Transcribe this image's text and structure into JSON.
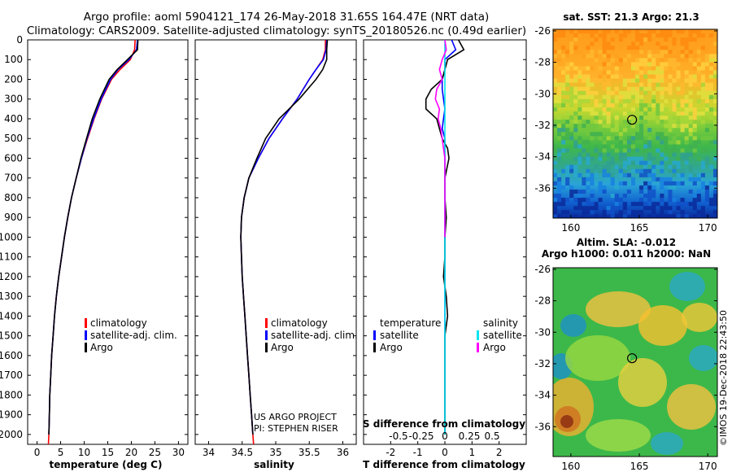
{
  "header": {
    "title_line1": "Argo profile: aoml 5904121_174 26-May-2018 31.65S 164.47E (NRT data)",
    "title_line2": "Climatology: CARS2009. Satellite-adjusted climatology: synTS_20180526.nc (0.49d earlier)"
  },
  "colors": {
    "climatology": "#ff0000",
    "satellite": "#0000ff",
    "argo": "#000000",
    "sat_salinity": "#00e5ee",
    "s_argo": "#ff00ff"
  },
  "chart_data": [
    {
      "type": "line",
      "name": "temperature",
      "xlabel": "temperature (deg C)",
      "xlim": [
        -2,
        32
      ],
      "xticks": [
        "0",
        "5",
        "10",
        "15",
        "20",
        "25",
        "30"
      ],
      "ylim": [
        2050,
        0
      ],
      "yticks": [
        "0",
        "100",
        "200",
        "300",
        "400",
        "500",
        "600",
        "700",
        "800",
        "900",
        "1000",
        "1100",
        "1200",
        "1300",
        "1400",
        "1500",
        "1600",
        "1700",
        "1800",
        "1900",
        "2000"
      ],
      "depth": [
        0,
        50,
        100,
        150,
        200,
        300,
        400,
        500,
        600,
        700,
        800,
        900,
        1000,
        1100,
        1200,
        1300,
        1400,
        1500,
        1600,
        1700,
        1800,
        1900,
        2000,
        2050
      ],
      "series": [
        {
          "name": "climatology",
          "color": "#ff0000",
          "values": [
            20.8,
            20.7,
            19.8,
            17.6,
            15.8,
            13.7,
            12.1,
            10.7,
            9.4,
            8.3,
            7.3,
            6.5,
            5.8,
            5.2,
            4.6,
            4.1,
            3.7,
            3.4,
            3.1,
            2.9,
            2.7,
            2.6,
            2.5,
            2.4
          ]
        },
        {
          "name": "satellite-adj. clim.",
          "color": "#0000ff",
          "values": [
            21.3,
            21.1,
            19.5,
            17.2,
            15.6,
            13.6,
            12.0,
            10.6,
            9.4,
            8.3,
            7.3,
            6.5,
            5.8,
            5.2,
            4.6,
            4.1,
            3.7,
            3.4,
            3.1,
            2.9,
            2.7,
            2.6,
            2.5,
            null
          ]
        },
        {
          "name": "Argo",
          "color": "#000000",
          "values": [
            21.4,
            21.3,
            19.2,
            17.0,
            15.3,
            13.3,
            11.7,
            10.5,
            9.3,
            8.3,
            7.3,
            6.5,
            5.8,
            5.2,
            4.6,
            4.1,
            3.7,
            3.4,
            3.1,
            2.9,
            2.7,
            2.6,
            2.5,
            null
          ]
        }
      ],
      "legend": [
        "climatology",
        "satellite-adj. clim.",
        "Argo"
      ]
    },
    {
      "type": "line",
      "name": "salinity",
      "xlabel": "salinity",
      "xlim": [
        33.8,
        36.2
      ],
      "xticks": [
        "34",
        "34.5",
        "35",
        "35.5",
        "36"
      ],
      "ylim": [
        2050,
        0
      ],
      "depth": [
        0,
        50,
        100,
        150,
        200,
        300,
        400,
        500,
        600,
        700,
        800,
        900,
        1000,
        1100,
        1200,
        1300,
        1400,
        1500,
        1600,
        1700,
        1800,
        1900,
        2000,
        2050
      ],
      "series": [
        {
          "name": "climatology",
          "color": "#ff0000",
          "values": [
            35.74,
            35.74,
            35.7,
            35.6,
            35.5,
            35.32,
            35.1,
            34.9,
            34.74,
            34.6,
            34.53,
            34.49,
            34.48,
            34.49,
            34.5,
            34.52,
            34.54,
            34.56,
            34.58,
            34.6,
            34.62,
            34.64,
            34.66,
            34.67
          ]
        },
        {
          "name": "satellite-adj. clim.",
          "color": "#0000ff",
          "values": [
            35.76,
            35.75,
            35.71,
            35.6,
            35.5,
            35.32,
            35.1,
            34.9,
            34.74,
            34.6,
            34.53,
            34.49,
            34.48,
            34.49,
            34.5,
            34.52,
            34.54,
            34.56,
            34.58,
            34.6,
            34.62,
            34.64,
            34.66,
            null
          ]
        },
        {
          "name": "Argo",
          "color": "#000000",
          "values": [
            35.77,
            35.76,
            35.76,
            35.7,
            35.6,
            35.35,
            35.05,
            34.85,
            34.72,
            34.6,
            34.53,
            34.49,
            34.48,
            34.49,
            34.5,
            34.52,
            34.54,
            34.56,
            34.58,
            34.6,
            34.62,
            34.64,
            34.66,
            null
          ]
        }
      ],
      "legend": [
        "climatology",
        "satellite-adj. clim.",
        "Argo"
      ],
      "note_line1": "US ARGO PROJECT",
      "note_line2": "PI: STEPHEN RISER"
    },
    {
      "type": "line",
      "name": "difference",
      "xlabel": "T difference from climatology",
      "xlim": [
        -3,
        3
      ],
      "xticks": [
        "-2",
        "-1",
        "0",
        "1",
        "2"
      ],
      "ylim": [
        2050,
        0
      ],
      "depth": [
        0,
        50,
        100,
        150,
        200,
        250,
        300,
        350,
        400,
        450,
        500,
        550,
        600,
        700,
        800,
        900,
        1000,
        1100,
        1200,
        1300,
        1400,
        1500,
        1600,
        1700,
        1800,
        1900,
        2000
      ],
      "series": [
        {
          "name": "T satellite",
          "color": "#0000ff",
          "values": [
            0.25,
            0.4,
            0.0,
            0.0,
            -0.1,
            -0.1,
            -0.05,
            0.0,
            -0.05,
            -0.1,
            0.0,
            0.0,
            0.0,
            0.0,
            0.0,
            0.0,
            0.0,
            0.0,
            0.0,
            0.0,
            0.0,
            0.0,
            0.0,
            0.0,
            0.0,
            0.0,
            0.0
          ]
        },
        {
          "name": "T Argo",
          "color": "#000000",
          "values": [
            0.5,
            0.7,
            0.1,
            0.0,
            -0.1,
            -0.5,
            -0.7,
            -0.7,
            -0.3,
            -0.2,
            -0.1,
            0.1,
            0.15,
            0.0,
            0.0,
            0.05,
            0.0,
            0.0,
            -0.05,
            0.05,
            0.1,
            0.0,
            0.0,
            0.0,
            0.0,
            0.0,
            0.0
          ]
        },
        {
          "name": "S satellite",
          "color": "#00e5ee",
          "values": [
            0.0,
            0.0,
            0.0,
            0.0,
            0.0,
            0.0,
            0.0,
            0.0,
            0.0,
            0.0,
            0.0,
            0.0,
            0.0,
            0.0,
            0.0,
            0.0,
            0.0,
            0.0,
            0.0,
            0.0,
            0.0,
            0.0,
            0.0,
            0.0,
            0.0,
            0.0,
            0.0
          ]
        },
        {
          "name": "S Argo",
          "color": "#ff00ff",
          "values": [
            0.0,
            0.05,
            -0.1,
            -0.2,
            -0.1,
            -0.3,
            -0.35,
            -0.2,
            -0.25,
            -0.15,
            -0.1,
            -0.05,
            0.0,
            0.0,
            0.0,
            0.0,
            0.0,
            null,
            null,
            null,
            null,
            null,
            null,
            null,
            null,
            null,
            null
          ]
        }
      ],
      "legend_left_title": "temperature",
      "legend_left": [
        "satellite",
        "Argo"
      ],
      "legend_right_title": "salinity",
      "legend_right": [
        "satellite",
        "Argo"
      ],
      "s_caption": "S difference from climatology",
      "s_ticks": [
        "-0.5",
        "-0.25",
        "0",
        "0.25",
        "0.5"
      ]
    },
    {
      "type": "heatmap",
      "name": "sst_map",
      "title": "sat. SST: 21.3  Argo: 21.3",
      "xticks": [
        "160",
        "165",
        "170"
      ],
      "yticks": [
        "-26",
        "-28",
        "-30",
        "-32",
        "-34",
        "-36"
      ],
      "xlim": [
        158.7,
        170.7
      ],
      "ylim": [
        -37.9,
        -25.9
      ],
      "float_position": [
        164.47,
        -31.65
      ]
    },
    {
      "type": "heatmap",
      "name": "sla_map",
      "title_line1": "Altim. SLA: -0.012",
      "title_line2": "Argo h1000: 0.011  h2000: NaN",
      "xticks": [
        "160",
        "165",
        "170"
      ],
      "yticks": [
        "-26",
        "-28",
        "-30",
        "-32",
        "-34",
        "-36"
      ],
      "xlim": [
        158.7,
        170.7
      ],
      "ylim": [
        -37.9,
        -25.9
      ],
      "float_position": [
        164.47,
        -31.65
      ]
    }
  ],
  "footer": {
    "credit": "©IMOS 19-Dec-2018 22:43:50"
  }
}
